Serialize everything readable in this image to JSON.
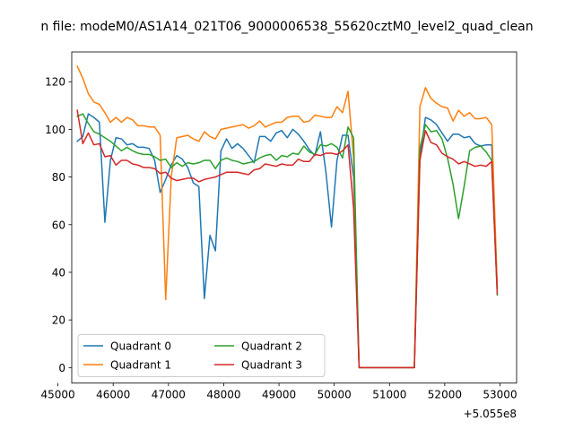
{
  "chart_data": {
    "type": "line",
    "title": "n file: modeM0/AS1A14_021T06_9000006538_55620cztM0_level2_quad_clean",
    "xlabel": "",
    "ylabel": "",
    "x_offset_label": "+5.055e8",
    "xlim": [
      45250,
      53300
    ],
    "ylim": [
      -6.5,
      132.5
    ],
    "xticks": [
      45000,
      46000,
      47000,
      48000,
      49000,
      50000,
      51000,
      52000,
      53000
    ],
    "xtick_labels": [
      "45000",
      "46000",
      "47000",
      "48000",
      "49000",
      "50000",
      "51000",
      "52000",
      "53000"
    ],
    "yticks": [
      0,
      20,
      40,
      60,
      80,
      100,
      120
    ],
    "ytick_labels": [
      "0",
      "20",
      "40",
      "60",
      "80",
      "100",
      "120"
    ],
    "legend": {
      "position": "lower-left",
      "columns": 2
    },
    "series": [
      {
        "name": "Quadrant 0",
        "color": "#1f77b4",
        "points": [
          [
            45350,
            95
          ],
          [
            45450,
            97
          ],
          [
            45550,
            106.5
          ],
          [
            45650,
            105
          ],
          [
            45750,
            103
          ],
          [
            45850,
            61
          ],
          [
            45950,
            87
          ],
          [
            46050,
            96.5
          ],
          [
            46150,
            96
          ],
          [
            46250,
            93.5
          ],
          [
            46350,
            94
          ],
          [
            46450,
            92.5
          ],
          [
            46550,
            92.5
          ],
          [
            46650,
            92
          ],
          [
            46750,
            87
          ],
          [
            46850,
            73.5
          ],
          [
            46950,
            79
          ],
          [
            47050,
            85
          ],
          [
            47150,
            89
          ],
          [
            47250,
            87.5
          ],
          [
            47350,
            84
          ],
          [
            47450,
            77.5
          ],
          [
            47550,
            76
          ],
          [
            47650,
            29
          ],
          [
            47750,
            55.5
          ],
          [
            47850,
            49
          ],
          [
            47950,
            91
          ],
          [
            48050,
            96
          ],
          [
            48150,
            92
          ],
          [
            48250,
            94
          ],
          [
            48350,
            92
          ],
          [
            48450,
            89
          ],
          [
            48550,
            86
          ],
          [
            48650,
            97
          ],
          [
            48750,
            97
          ],
          [
            48850,
            95
          ],
          [
            48950,
            98.5
          ],
          [
            49050,
            99.5
          ],
          [
            49150,
            96.5
          ],
          [
            49250,
            100
          ],
          [
            49350,
            98
          ],
          [
            49450,
            95
          ],
          [
            49550,
            91.5
          ],
          [
            49650,
            89
          ],
          [
            49750,
            99
          ],
          [
            49850,
            82
          ],
          [
            49950,
            59
          ],
          [
            50050,
            87
          ],
          [
            50150,
            97.5
          ],
          [
            50250,
            97.5
          ],
          [
            50350,
            80
          ],
          [
            50450,
            0
          ],
          [
            51450,
            0
          ],
          [
            51550,
            88
          ],
          [
            51650,
            105
          ],
          [
            51750,
            104
          ],
          [
            51850,
            102
          ],
          [
            51950,
            98.5
          ],
          [
            52050,
            95
          ],
          [
            52150,
            98
          ],
          [
            52250,
            98
          ],
          [
            52350,
            96.5
          ],
          [
            52450,
            97
          ],
          [
            52550,
            94
          ],
          [
            52650,
            93
          ],
          [
            52750,
            93.5
          ],
          [
            52850,
            93.5
          ],
          [
            52950,
            33.5
          ]
        ]
      },
      {
        "name": "Quadrant 1",
        "color": "#ff7f0e",
        "points": [
          [
            45350,
            126.5
          ],
          [
            45450,
            121.5
          ],
          [
            45550,
            115
          ],
          [
            45650,
            111.5
          ],
          [
            45750,
            110.5
          ],
          [
            45850,
            107
          ],
          [
            45950,
            103
          ],
          [
            46050,
            105
          ],
          [
            46150,
            103
          ],
          [
            46250,
            105
          ],
          [
            46350,
            104
          ],
          [
            46450,
            101.5
          ],
          [
            46550,
            101.5
          ],
          [
            46650,
            101
          ],
          [
            46750,
            101
          ],
          [
            46850,
            97.5
          ],
          [
            46950,
            28.5
          ],
          [
            47050,
            80
          ],
          [
            47150,
            96.5
          ],
          [
            47250,
            97
          ],
          [
            47350,
            97.5
          ],
          [
            47450,
            96
          ],
          [
            47550,
            95
          ],
          [
            47650,
            99
          ],
          [
            47750,
            97
          ],
          [
            47850,
            96
          ],
          [
            47950,
            100
          ],
          [
            48050,
            100.5
          ],
          [
            48150,
            101
          ],
          [
            48250,
            101.5
          ],
          [
            48350,
            102
          ],
          [
            48450,
            100.5
          ],
          [
            48550,
            101.5
          ],
          [
            48650,
            103.5
          ],
          [
            48750,
            101
          ],
          [
            48850,
            102
          ],
          [
            48950,
            103
          ],
          [
            49050,
            103
          ],
          [
            49150,
            105
          ],
          [
            49250,
            105.5
          ],
          [
            49350,
            105.5
          ],
          [
            49450,
            103
          ],
          [
            49550,
            103.5
          ],
          [
            49650,
            106
          ],
          [
            49750,
            105.5
          ],
          [
            49850,
            105
          ],
          [
            49950,
            105
          ],
          [
            50050,
            109.5
          ],
          [
            50150,
            107
          ],
          [
            50250,
            116
          ],
          [
            50350,
            88
          ],
          [
            50450,
            0
          ],
          [
            51450,
            0
          ],
          [
            51550,
            109.5
          ],
          [
            51650,
            117.5
          ],
          [
            51750,
            113
          ],
          [
            51850,
            111
          ],
          [
            51950,
            109.5
          ],
          [
            52050,
            109
          ],
          [
            52150,
            103.5
          ],
          [
            52250,
            108
          ],
          [
            52350,
            105.5
          ],
          [
            52450,
            107
          ],
          [
            52550,
            104.5
          ],
          [
            52650,
            104.5
          ],
          [
            52750,
            105
          ],
          [
            52850,
            102
          ],
          [
            52950,
            34
          ]
        ]
      },
      {
        "name": "Quadrant 2",
        "color": "#2ca02c",
        "points": [
          [
            45350,
            105.5
          ],
          [
            45450,
            106.5
          ],
          [
            45550,
            102.5
          ],
          [
            45650,
            99
          ],
          [
            45750,
            98
          ],
          [
            45850,
            96.5
          ],
          [
            45950,
            95
          ],
          [
            46050,
            93
          ],
          [
            46150,
            91
          ],
          [
            46250,
            92.5
          ],
          [
            46350,
            91
          ],
          [
            46450,
            90
          ],
          [
            46550,
            89.5
          ],
          [
            46650,
            89.5
          ],
          [
            46750,
            88.5
          ],
          [
            46850,
            87
          ],
          [
            46950,
            87.5
          ],
          [
            47050,
            84
          ],
          [
            47150,
            86
          ],
          [
            47250,
            84.5
          ],
          [
            47350,
            86
          ],
          [
            47450,
            85.5
          ],
          [
            47550,
            86
          ],
          [
            47650,
            87
          ],
          [
            47750,
            87
          ],
          [
            47850,
            83.5
          ],
          [
            47950,
            87
          ],
          [
            48050,
            88
          ],
          [
            48150,
            87
          ],
          [
            48250,
            86.5
          ],
          [
            48350,
            85.5
          ],
          [
            48450,
            86
          ],
          [
            48550,
            86.5
          ],
          [
            48650,
            88
          ],
          [
            48750,
            89
          ],
          [
            48850,
            89.5
          ],
          [
            48950,
            87
          ],
          [
            49050,
            89
          ],
          [
            49150,
            88.5
          ],
          [
            49250,
            90
          ],
          [
            49350,
            89.5
          ],
          [
            49450,
            93
          ],
          [
            49550,
            90.5
          ],
          [
            49650,
            89.5
          ],
          [
            49750,
            93.5
          ],
          [
            49850,
            93
          ],
          [
            49950,
            94
          ],
          [
            50050,
            92.5
          ],
          [
            50150,
            88
          ],
          [
            50250,
            101
          ],
          [
            50350,
            96.5
          ],
          [
            50450,
            0
          ],
          [
            51450,
            0
          ],
          [
            51550,
            92
          ],
          [
            51650,
            102
          ],
          [
            51750,
            99
          ],
          [
            51850,
            99.5
          ],
          [
            51950,
            96
          ],
          [
            52050,
            88
          ],
          [
            52150,
            77
          ],
          [
            52250,
            62.5
          ],
          [
            52350,
            76
          ],
          [
            52450,
            91
          ],
          [
            52550,
            92.5
          ],
          [
            52650,
            93
          ],
          [
            52750,
            90.5
          ],
          [
            52850,
            87
          ],
          [
            52950,
            30.5
          ]
        ]
      },
      {
        "name": "Quadrant 3",
        "color": "#d62728",
        "points": [
          [
            45350,
            108
          ],
          [
            45450,
            94
          ],
          [
            45550,
            98.5
          ],
          [
            45650,
            93.5
          ],
          [
            45750,
            94
          ],
          [
            45850,
            88.5
          ],
          [
            45950,
            89
          ],
          [
            46050,
            85
          ],
          [
            46150,
            87
          ],
          [
            46250,
            87
          ],
          [
            46350,
            85.5
          ],
          [
            46450,
            85
          ],
          [
            46550,
            84
          ],
          [
            46650,
            84
          ],
          [
            46750,
            83.5
          ],
          [
            46850,
            81.5
          ],
          [
            46950,
            82
          ],
          [
            47050,
            79.5
          ],
          [
            47150,
            78.5
          ],
          [
            47250,
            79
          ],
          [
            47350,
            79.5
          ],
          [
            47450,
            79.5
          ],
          [
            47550,
            78
          ],
          [
            47650,
            79
          ],
          [
            47750,
            79.5
          ],
          [
            47850,
            80
          ],
          [
            47950,
            81
          ],
          [
            48050,
            82
          ],
          [
            48150,
            82
          ],
          [
            48250,
            82
          ],
          [
            48350,
            81.5
          ],
          [
            48450,
            81
          ],
          [
            48550,
            83
          ],
          [
            48650,
            83.5
          ],
          [
            48750,
            85.5
          ],
          [
            48850,
            85
          ],
          [
            48950,
            84.5
          ],
          [
            49050,
            85.5
          ],
          [
            49150,
            85
          ],
          [
            49250,
            85
          ],
          [
            49350,
            87.5
          ],
          [
            49450,
            86.5
          ],
          [
            49550,
            86.5
          ],
          [
            49650,
            89.5
          ],
          [
            49750,
            89
          ],
          [
            49850,
            90
          ],
          [
            49950,
            90
          ],
          [
            50050,
            89.5
          ],
          [
            50150,
            91
          ],
          [
            50250,
            93.5
          ],
          [
            50350,
            67
          ],
          [
            50450,
            0
          ],
          [
            51450,
            0
          ],
          [
            51550,
            87
          ],
          [
            51650,
            99.5
          ],
          [
            51750,
            94.5
          ],
          [
            51850,
            93.5
          ],
          [
            51950,
            90
          ],
          [
            52050,
            88.5
          ],
          [
            52150,
            87.5
          ],
          [
            52250,
            85.5
          ],
          [
            52350,
            86.5
          ],
          [
            52450,
            85.5
          ],
          [
            52550,
            84.5
          ],
          [
            52650,
            85
          ],
          [
            52750,
            84.5
          ],
          [
            52850,
            86.5
          ],
          [
            52950,
            31
          ]
        ]
      }
    ]
  }
}
